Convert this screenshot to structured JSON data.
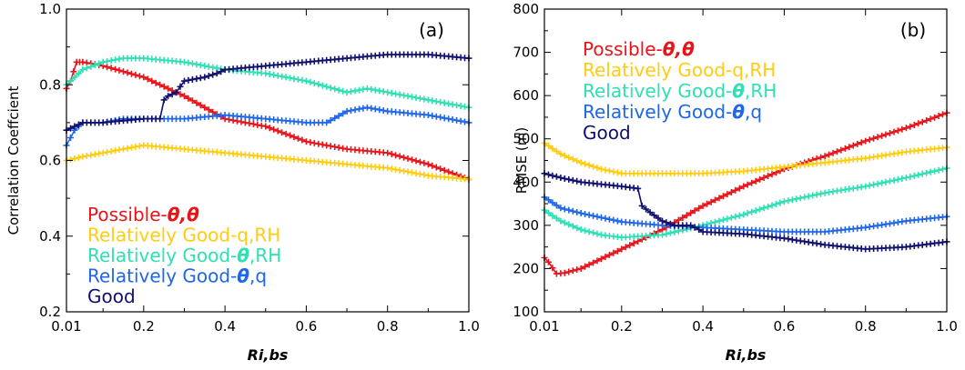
{
  "figure": {
    "colors": {
      "possible": "#e8141a",
      "rel_q_rh": "#ffcc11",
      "rel_theta_rh": "#2ee0b4",
      "rel_theta_q": "#1e66ea",
      "good": "#10106e"
    }
  },
  "chart_data": [
    {
      "type": "line",
      "panel": "(a)",
      "ylabel": "Correlation Coeffcient",
      "xlabel": "Ri,bs",
      "xlim": [
        0.01,
        1.0
      ],
      "ylim": [
        0.2,
        1.0
      ],
      "xticks": [
        0.01,
        0.2,
        0.4,
        0.6,
        0.8,
        1.0
      ],
      "xtick_labels": [
        "0.01",
        "0.2",
        "0.4",
        "0.6",
        "0.8",
        "1.0"
      ],
      "yticks": [
        0.2,
        0.4,
        0.6,
        0.8,
        1.0
      ],
      "ytick_labels": [
        "0.2",
        "0.4",
        "0.6",
        "0.8",
        "1.0"
      ],
      "legend_position": "bottom-left",
      "series": [
        {
          "name": "Possible-θ,θ",
          "color_key": "possible",
          "legend": [
            "Possible-",
            "θ,θ"
          ],
          "x": [
            0.01,
            0.02,
            0.035,
            0.05,
            0.1,
            0.2,
            0.3,
            0.4,
            0.5,
            0.6,
            0.7,
            0.8,
            0.9,
            1.0
          ],
          "y": [
            0.79,
            0.81,
            0.86,
            0.86,
            0.85,
            0.82,
            0.77,
            0.71,
            0.69,
            0.65,
            0.63,
            0.62,
            0.59,
            0.55
          ]
        },
        {
          "name": "Relatively Good-q,RH",
          "color_key": "rel_q_rh",
          "legend": [
            "Relatively Good-q,RH"
          ],
          "x": [
            0.01,
            0.05,
            0.1,
            0.15,
            0.2,
            0.3,
            0.4,
            0.5,
            0.6,
            0.7,
            0.8,
            0.9,
            1.0
          ],
          "y": [
            0.6,
            0.61,
            0.62,
            0.63,
            0.64,
            0.63,
            0.62,
            0.61,
            0.6,
            0.59,
            0.58,
            0.56,
            0.55
          ]
        },
        {
          "name": "Relatively Good-θ,RH",
          "color_key": "rel_theta_rh",
          "legend": [
            "Relatively Good-",
            "θ",
            ",RH"
          ],
          "x": [
            0.01,
            0.05,
            0.1,
            0.15,
            0.2,
            0.3,
            0.4,
            0.5,
            0.6,
            0.7,
            0.75,
            0.8,
            0.9,
            1.0
          ],
          "y": [
            0.8,
            0.84,
            0.86,
            0.87,
            0.87,
            0.86,
            0.84,
            0.83,
            0.81,
            0.78,
            0.79,
            0.78,
            0.76,
            0.74
          ]
        },
        {
          "name": "Relatively Good-θ,q",
          "color_key": "rel_theta_q",
          "legend": [
            "Relatively Good-",
            "θ",
            ",q"
          ],
          "x": [
            0.01,
            0.03,
            0.05,
            0.1,
            0.15,
            0.2,
            0.3,
            0.4,
            0.5,
            0.6,
            0.65,
            0.7,
            0.75,
            0.8,
            0.9,
            1.0
          ],
          "y": [
            0.64,
            0.68,
            0.7,
            0.7,
            0.71,
            0.71,
            0.71,
            0.72,
            0.71,
            0.7,
            0.7,
            0.73,
            0.74,
            0.73,
            0.72,
            0.7
          ]
        },
        {
          "name": "Good",
          "color_key": "good",
          "legend": [
            "Good"
          ],
          "x": [
            0.01,
            0.05,
            0.1,
            0.2,
            0.24,
            0.25,
            0.26,
            0.28,
            0.3,
            0.35,
            0.38,
            0.4,
            0.5,
            0.6,
            0.7,
            0.8,
            0.9,
            1.0
          ],
          "y": [
            0.68,
            0.7,
            0.7,
            0.71,
            0.71,
            0.76,
            0.77,
            0.78,
            0.81,
            0.82,
            0.83,
            0.84,
            0.85,
            0.86,
            0.87,
            0.88,
            0.88,
            0.87
          ]
        }
      ]
    },
    {
      "type": "line",
      "panel": "(b)",
      "ylabel": "RMSE  (m)",
      "xlabel": "Ri,bs",
      "xlim": [
        0.01,
        1.0
      ],
      "ylim": [
        100,
        800
      ],
      "xticks": [
        0.01,
        0.2,
        0.4,
        0.6,
        0.8,
        1.0
      ],
      "xtick_labels": [
        "0.01",
        "0.2",
        "0.4",
        "0.6",
        "0.8",
        "1.0"
      ],
      "yticks": [
        100,
        200,
        300,
        400,
        500,
        600,
        700,
        800
      ],
      "ytick_labels": [
        "100",
        "200",
        "300",
        "400",
        "500",
        "600",
        "700",
        "800"
      ],
      "legend_position": "top-left",
      "series": [
        {
          "name": "Possible-θ,θ",
          "color_key": "possible",
          "legend": [
            "Possible-",
            "θ,θ"
          ],
          "x": [
            0.01,
            0.02,
            0.04,
            0.06,
            0.1,
            0.2,
            0.3,
            0.4,
            0.5,
            0.6,
            0.7,
            0.8,
            0.9,
            1.0
          ],
          "y": [
            225,
            215,
            188,
            190,
            200,
            245,
            290,
            345,
            390,
            430,
            460,
            495,
            525,
            560
          ]
        },
        {
          "name": "Relatively Good-q,RH",
          "color_key": "rel_q_rh",
          "legend": [
            "Relatively Good-q,RH"
          ],
          "x": [
            0.01,
            0.05,
            0.1,
            0.15,
            0.2,
            0.3,
            0.4,
            0.5,
            0.6,
            0.7,
            0.8,
            0.9,
            1.0
          ],
          "y": [
            490,
            465,
            445,
            430,
            420,
            420,
            420,
            425,
            435,
            445,
            455,
            470,
            480
          ]
        },
        {
          "name": "Relatively Good-θ,RH",
          "color_key": "rel_theta_rh",
          "legend": [
            "Relatively Good-",
            "θ",
            ",RH"
          ],
          "x": [
            0.01,
            0.05,
            0.1,
            0.15,
            0.2,
            0.3,
            0.4,
            0.5,
            0.6,
            0.7,
            0.8,
            0.9,
            1.0
          ],
          "y": [
            335,
            310,
            290,
            278,
            272,
            278,
            300,
            325,
            355,
            375,
            390,
            410,
            432
          ]
        },
        {
          "name": "Relatively Good-θ,q",
          "color_key": "rel_theta_q",
          "legend": [
            "Relatively Good-",
            "θ",
            ",q"
          ],
          "x": [
            0.01,
            0.05,
            0.1,
            0.15,
            0.2,
            0.3,
            0.4,
            0.5,
            0.6,
            0.7,
            0.8,
            0.9,
            1.0
          ],
          "y": [
            365,
            340,
            328,
            318,
            308,
            300,
            295,
            290,
            285,
            285,
            295,
            310,
            320
          ]
        },
        {
          "name": "Good",
          "color_key": "good",
          "legend": [
            "Good"
          ],
          "x": [
            0.01,
            0.05,
            0.1,
            0.2,
            0.24,
            0.25,
            0.27,
            0.3,
            0.33,
            0.37,
            0.4,
            0.5,
            0.6,
            0.7,
            0.8,
            0.9,
            1.0
          ],
          "y": [
            420,
            410,
            400,
            390,
            385,
            345,
            330,
            310,
            300,
            300,
            285,
            280,
            270,
            255,
            245,
            250,
            262
          ]
        }
      ]
    }
  ]
}
